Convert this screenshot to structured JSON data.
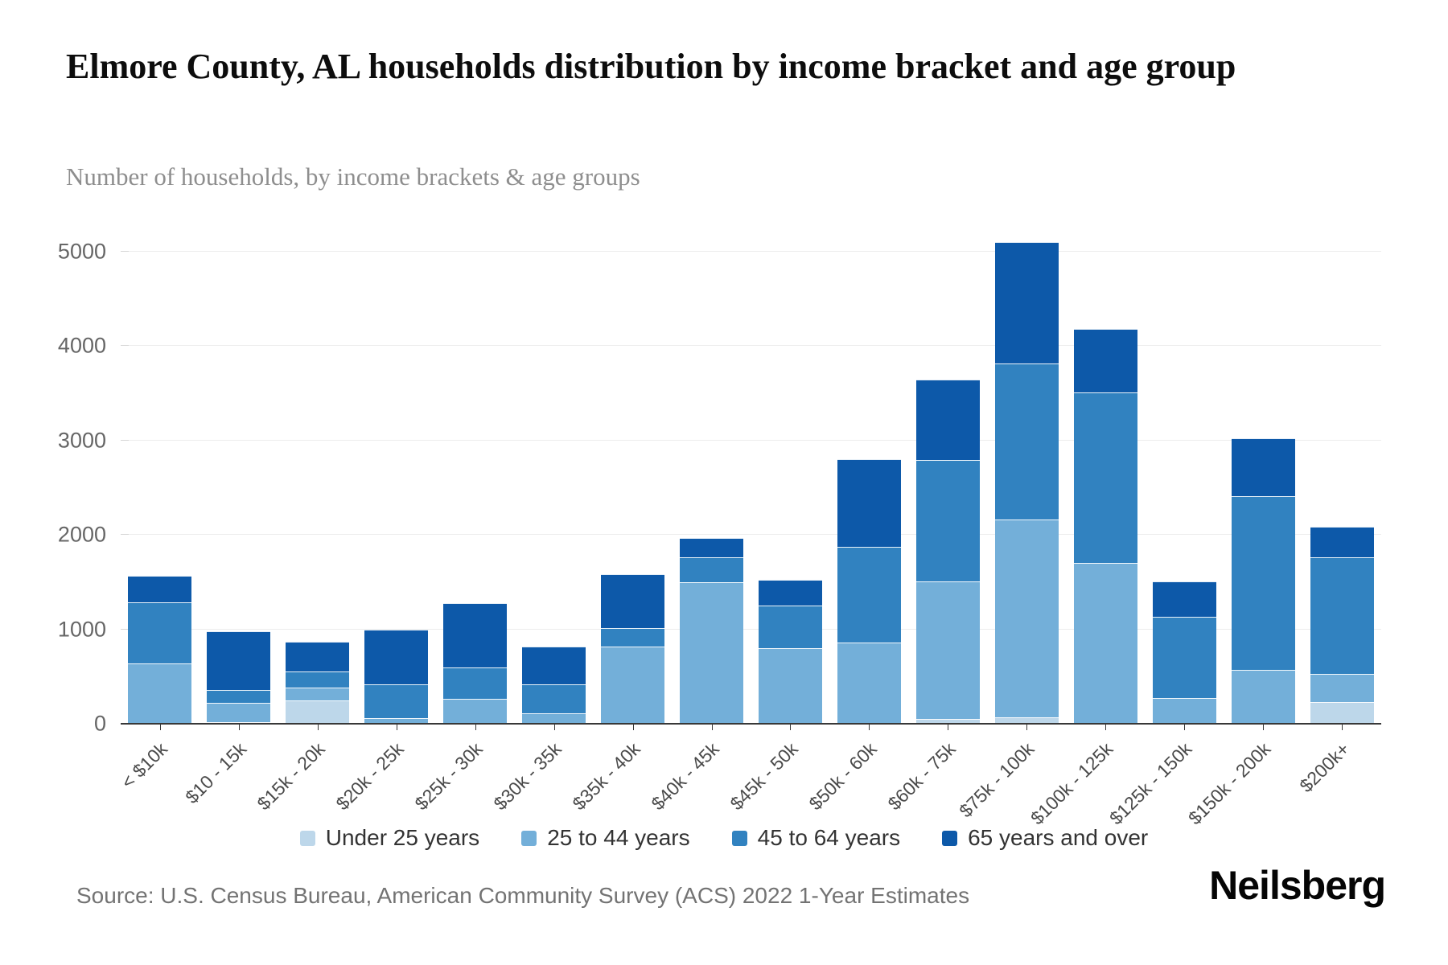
{
  "header": {
    "title": "Elmore County, AL households distribution by income bracket and age group",
    "subtitle": "Number of households, by income brackets & age groups"
  },
  "footer": {
    "source": "Source: U.S. Census Bureau, American Community Survey (ACS) 2022 1-Year Estimates",
    "brand": "Neilsberg"
  },
  "chart_data": {
    "type": "bar",
    "stacked": true,
    "title": "Elmore County, AL households distribution by income bracket and age group",
    "subtitle": "Number of households, by income brackets & age groups",
    "xlabel": "",
    "ylabel": "Number of households",
    "ylim": [
      0,
      5200
    ],
    "ytick_interval": 1000,
    "yticks": [
      0,
      1000,
      2000,
      3000,
      4000,
      5000
    ],
    "grid": true,
    "legend_position": "bottom",
    "categories": [
      "< $10k",
      "$10 - 15k",
      "$15k - 20k",
      "$20k - 25k",
      "$25k - 30k",
      "$30k - 35k",
      "$35k - 40k",
      "$40k - 45k",
      "$45k - 50k",
      "$50k - 60k",
      "$60k - 75k",
      "$75k - 100k",
      "$100k - 125k",
      "$125k - 150k",
      "$150k - 200k",
      "$200k+"
    ],
    "series": [
      {
        "name": "Under 25 years",
        "color": "#bdd7ea",
        "values": [
          0,
          20,
          250,
          0,
          0,
          0,
          0,
          0,
          0,
          0,
          50,
          70,
          0,
          0,
          0,
          230
        ]
      },
      {
        "name": "25 to 44 years",
        "color": "#73afd9",
        "values": [
          640,
          200,
          130,
          60,
          265,
          110,
          815,
          1500,
          800,
          860,
          1460,
          2090,
          1700,
          270,
          570,
          300
        ]
      },
      {
        "name": "45 to 64 years",
        "color": "#3182c0",
        "values": [
          645,
          140,
          170,
          360,
          335,
          305,
          195,
          260,
          450,
          1010,
          1280,
          1650,
          1810,
          860,
          1840,
          1235
        ]
      },
      {
        "name": "65 years and over",
        "color": "#0d59a9",
        "values": [
          285,
          620,
          320,
          580,
          680,
          400,
          570,
          210,
          270,
          930,
          850,
          1290,
          670,
          380,
          610,
          320
        ]
      }
    ],
    "totals": [
      1570,
      980,
      870,
      1000,
      1280,
      815,
      1580,
      1970,
      1520,
      2800,
      3640,
      5100,
      4180,
      1510,
      3020,
      2085
    ]
  }
}
